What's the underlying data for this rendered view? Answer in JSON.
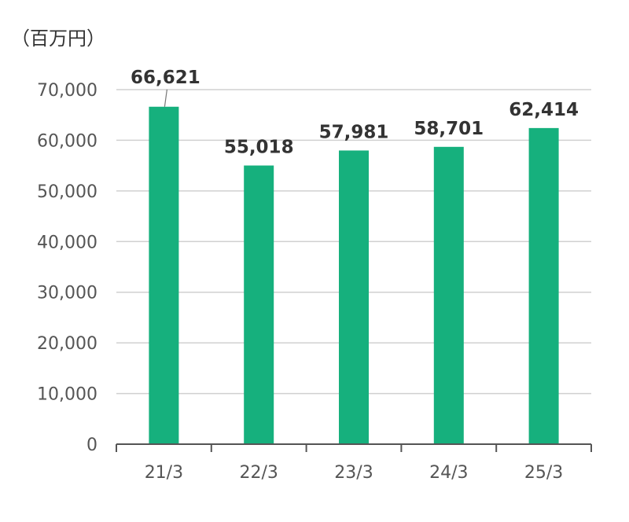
{
  "chart_data": {
    "type": "bar",
    "unit_label": "（百万円）",
    "categories": [
      "21/3",
      "22/3",
      "23/3",
      "24/3",
      "25/3"
    ],
    "values": [
      66621,
      55018,
      57981,
      58701,
      62414
    ],
    "data_labels": [
      "66,621",
      "55,018",
      "57,981",
      "58,701",
      "62,414"
    ],
    "y_ticks": [
      0,
      10000,
      20000,
      30000,
      40000,
      50000,
      60000,
      70000
    ],
    "y_tick_labels": [
      "0",
      "10,000",
      "20,000",
      "30,000",
      "40,000",
      "50,000",
      "60,000",
      "70,000"
    ],
    "ylim": [
      0,
      70000
    ],
    "grid": true,
    "bar_color": "#16b07d",
    "grid_color": "#d0d0d0",
    "axis_color": "#555555"
  }
}
